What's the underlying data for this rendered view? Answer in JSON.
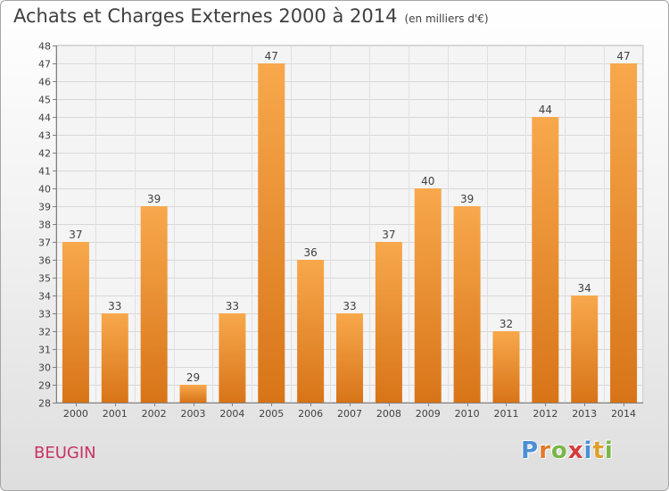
{
  "title": {
    "main": "Achats et Charges Externes 2000 à 2014",
    "unit": "(en milliers d'€)"
  },
  "place": "BEUGIN",
  "logo": {
    "text": "Proxiti",
    "letters": [
      {
        "ch": "P",
        "color": "#4a8fd4"
      },
      {
        "ch": "r",
        "color": "#e07a2e"
      },
      {
        "ch": "o",
        "color": "#7ab648"
      },
      {
        "ch": "x",
        "color": "#d63c3c"
      },
      {
        "ch": "i",
        "color": "#4a8fd4"
      },
      {
        "ch": "t",
        "color": "#e0a02e"
      },
      {
        "ch": "i",
        "color": "#7ab648"
      }
    ]
  },
  "chart_data": {
    "type": "bar",
    "categories": [
      "2000",
      "2001",
      "2002",
      "2003",
      "2004",
      "2005",
      "2006",
      "2007",
      "2008",
      "2009",
      "2010",
      "2011",
      "2012",
      "2013",
      "2014"
    ],
    "values": [
      37,
      33,
      39,
      29,
      33,
      47,
      36,
      33,
      37,
      40,
      39,
      32,
      44,
      34,
      47
    ],
    "ylim": [
      28,
      48
    ],
    "yticks": [
      28,
      29,
      30,
      31,
      32,
      33,
      34,
      35,
      36,
      37,
      38,
      39,
      40,
      41,
      42,
      43,
      44,
      45,
      46,
      47,
      48
    ],
    "grid": true,
    "bar_color_light": "#f8a84c",
    "bar_color_dark": "#d87418"
  }
}
